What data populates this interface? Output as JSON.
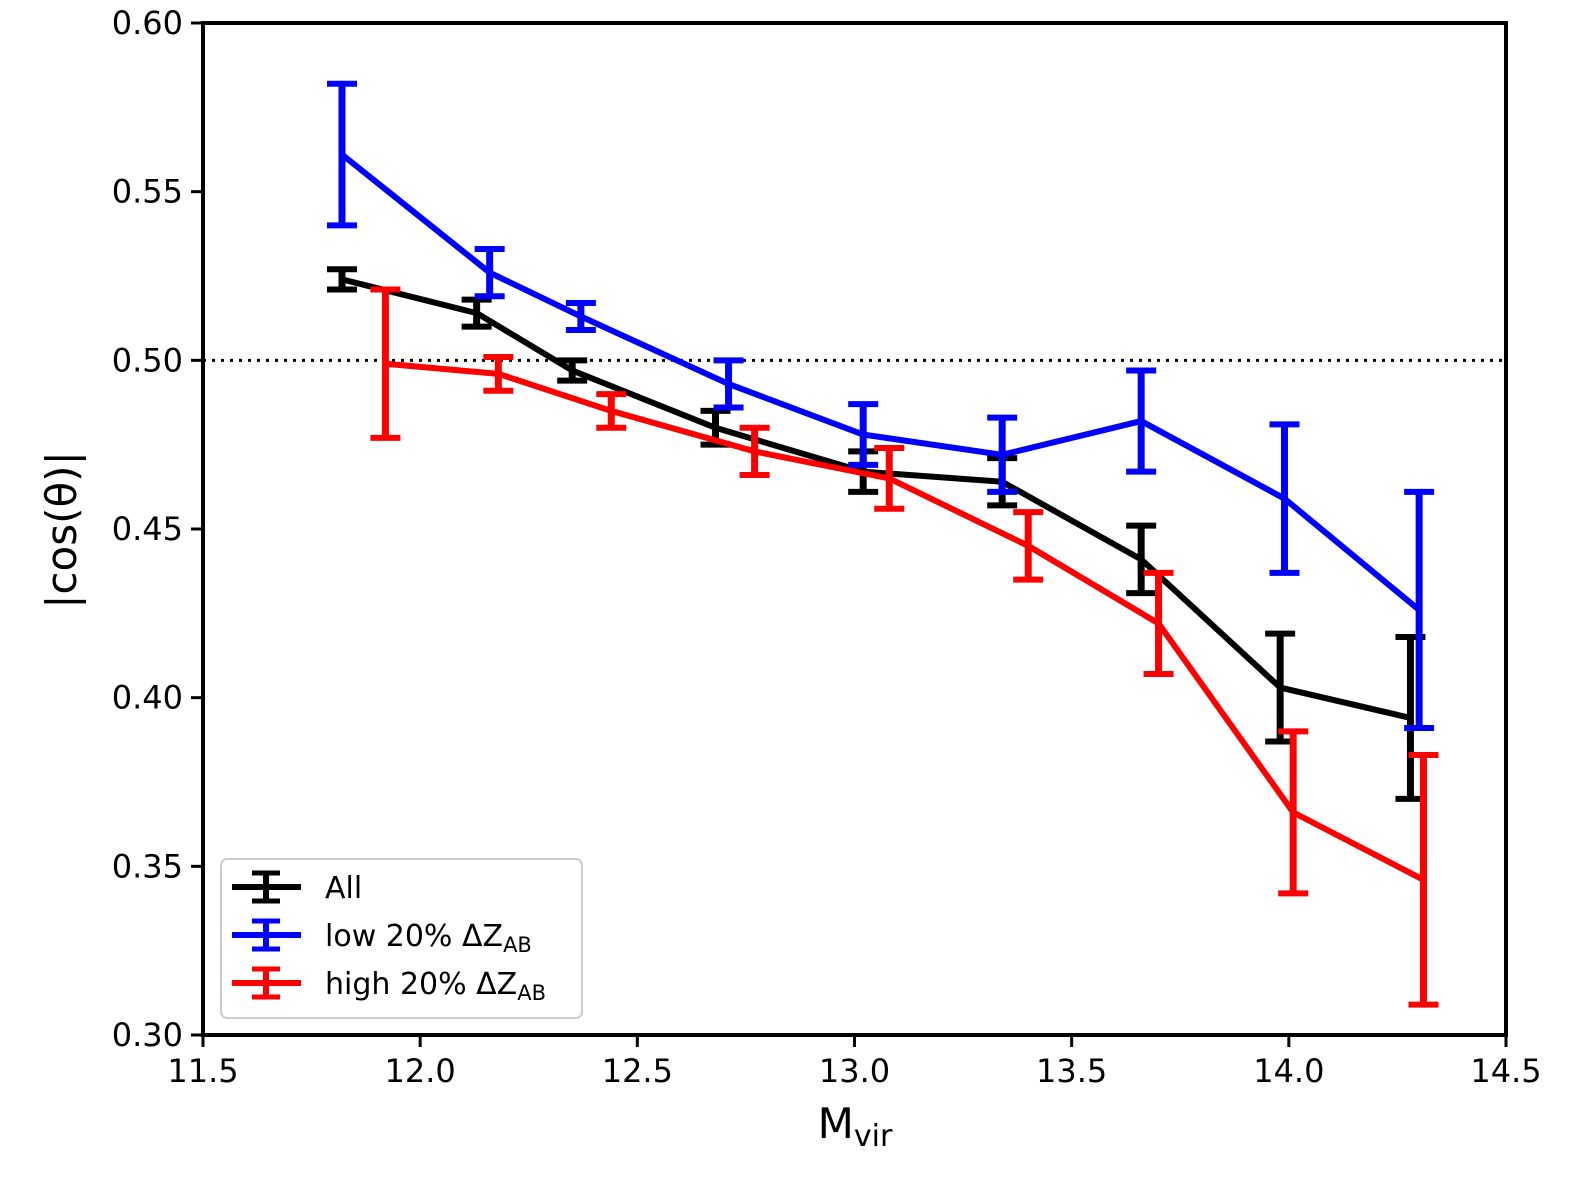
{
  "chart_data": {
    "type": "line",
    "title": "",
    "xlabel": "M",
    "xlabel_sub": "vir",
    "ylabel": "|cos(θ)|",
    "xlim": [
      11.5,
      14.5
    ],
    "ylim": [
      0.3,
      0.6
    ],
    "xticks": [
      "11.5",
      "12.0",
      "12.5",
      "13.0",
      "13.5",
      "14.0",
      "14.5"
    ],
    "yticks": [
      "0.30",
      "0.35",
      "0.40",
      "0.45",
      "0.50",
      "0.55",
      "0.60"
    ],
    "reference_line": {
      "y": 0.5,
      "style": "dotted",
      "color": "#000000"
    },
    "grid": false,
    "legend_position": "lower-left",
    "series": [
      {
        "name": "All",
        "name_sub": "",
        "color": "#000000",
        "x": [
          11.82,
          12.13,
          12.35,
          12.68,
          13.02,
          13.34,
          13.66,
          13.98,
          14.28
        ],
        "y": [
          0.524,
          0.514,
          0.497,
          0.48,
          0.467,
          0.464,
          0.441,
          0.403,
          0.394
        ],
        "err": [
          0.003,
          0.004,
          0.003,
          0.005,
          0.006,
          0.007,
          0.01,
          0.016,
          0.024
        ]
      },
      {
        "name": "low 20% ΔZ",
        "name_sub": "AB",
        "color": "#0000ff",
        "x": [
          11.82,
          12.16,
          12.37,
          12.71,
          13.02,
          13.34,
          13.66,
          13.99,
          14.3
        ],
        "y": [
          0.561,
          0.526,
          0.513,
          0.493,
          0.478,
          0.472,
          0.482,
          0.459,
          0.426
        ],
        "err": [
          0.021,
          0.007,
          0.004,
          0.007,
          0.009,
          0.011,
          0.015,
          0.022,
          0.035
        ]
      },
      {
        "name": "high 20% ΔZ",
        "name_sub": "AB",
        "color": "#ff0000",
        "x": [
          11.92,
          12.18,
          12.44,
          12.77,
          13.08,
          13.4,
          13.7,
          14.01,
          14.31
        ],
        "y": [
          0.499,
          0.496,
          0.485,
          0.473,
          0.465,
          0.445,
          0.422,
          0.366,
          0.346
        ],
        "err": [
          0.022,
          0.005,
          0.005,
          0.007,
          0.009,
          0.01,
          0.015,
          0.024,
          0.037
        ]
      }
    ]
  }
}
